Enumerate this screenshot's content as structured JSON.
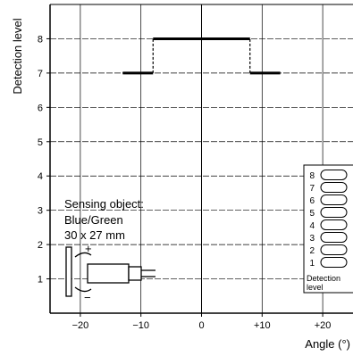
{
  "chart_data": {
    "type": "line",
    "title": "",
    "xlabel": "Angle (°)",
    "ylabel": "Detection level",
    "xlim": [
      -25,
      25
    ],
    "ylim": [
      0,
      9
    ],
    "x_ticks": [
      -20,
      -10,
      0,
      10,
      20
    ],
    "x_tick_labels": [
      "−20",
      "−10",
      "0",
      "+10",
      "+20"
    ],
    "y_ticks": [
      1,
      2,
      3,
      4,
      5,
      6,
      7,
      8
    ],
    "y_tick_labels": [
      "1",
      "2",
      "3",
      "4",
      "5",
      "6",
      "7",
      "8"
    ],
    "grid": true,
    "series": [
      {
        "segments": [
          {
            "x": [
              -13,
              -8
            ],
            "y": [
              7,
              7
            ]
          },
          {
            "x": [
              -8,
              8
            ],
            "y": [
              8,
              8
            ]
          },
          {
            "x": [
              8,
              13
            ],
            "y": [
              7,
              7
            ]
          }
        ],
        "transitions_dashed": [
          {
            "x": -8,
            "y": [
              7,
              8
            ]
          },
          {
            "x": 8,
            "y": [
              7,
              8
            ]
          }
        ]
      }
    ],
    "annotation": {
      "lines": [
        "Sensing object:",
        "Blue/Green",
        "30 x 27 mm"
      ],
      "plus": "+",
      "minus": "−"
    },
    "level_legend": {
      "levels": [
        "8",
        "7",
        "6",
        "5",
        "4",
        "3",
        "2",
        "1"
      ],
      "caption": [
        "Detection",
        "level"
      ],
      "placement": "bottom-right"
    }
  }
}
